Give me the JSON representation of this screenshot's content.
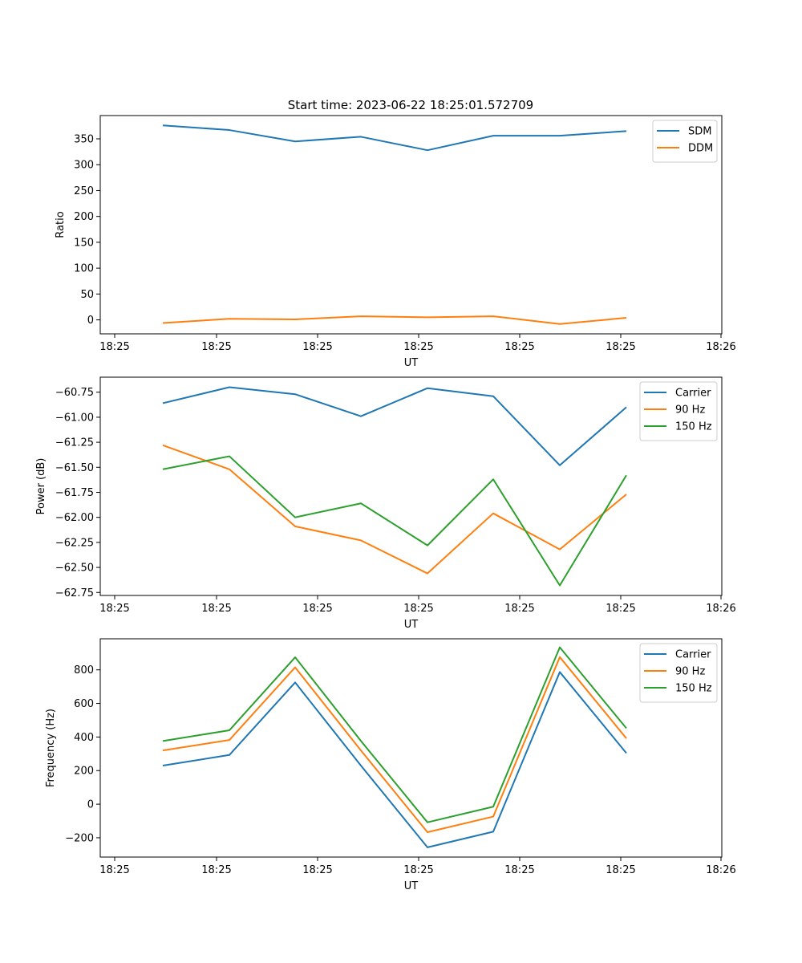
{
  "figure": {
    "title": "Start time: 2023-06-22 18:25:01.572709"
  },
  "chart_data": [
    {
      "type": "line",
      "title": "Start time: 2023-06-22 18:25:01.572709",
      "xlabel": "UT",
      "ylabel": "Ratio",
      "x_tick_labels": [
        "18:25",
        "18:25",
        "18:25",
        "18:25",
        "18:25",
        "18:25",
        "18:26"
      ],
      "y_ticks": [
        0,
        50,
        100,
        150,
        200,
        250,
        300,
        350
      ],
      "ylim": [
        -27,
        395
      ],
      "legend_position": "top-right",
      "grid": false,
      "series": [
        {
          "name": "SDM",
          "color": "#1f77b4",
          "values": [
            376,
            367,
            345,
            354,
            328,
            356,
            356,
            365
          ]
        },
        {
          "name": "DDM",
          "color": "#ff7f0e",
          "values": [
            -6,
            2,
            1,
            7,
            5,
            7,
            -8,
            4
          ]
        }
      ]
    },
    {
      "type": "line",
      "xlabel": "UT",
      "ylabel": "Power (dB)",
      "x_tick_labels": [
        "18:25",
        "18:25",
        "18:25",
        "18:25",
        "18:25",
        "18:25",
        "18:26"
      ],
      "y_ticks": [
        -62.75,
        -62.5,
        -62.25,
        -62.0,
        -61.75,
        -61.5,
        -61.25,
        -61.0,
        -60.75
      ],
      "ylim": [
        -62.78,
        -60.6
      ],
      "legend_position": "top-right",
      "grid": false,
      "series": [
        {
          "name": "Carrier",
          "color": "#1f77b4",
          "values": [
            -60.86,
            -60.7,
            -60.77,
            -60.99,
            -60.71,
            -60.79,
            -61.48,
            -60.9
          ]
        },
        {
          "name": "90 Hz",
          "color": "#ff7f0e",
          "values": [
            -61.28,
            -61.52,
            -62.09,
            -62.23,
            -62.56,
            -61.96,
            -62.32,
            -61.77
          ]
        },
        {
          "name": "150 Hz",
          "color": "#2ca02c",
          "values": [
            -61.52,
            -61.39,
            -62.0,
            -61.86,
            -62.28,
            -61.62,
            -62.68,
            -61.58
          ]
        }
      ]
    },
    {
      "type": "line",
      "xlabel": "UT",
      "ylabel": "Frequency (Hz)",
      "x_tick_labels": [
        "18:25",
        "18:25",
        "18:25",
        "18:25",
        "18:25",
        "18:25",
        "18:26"
      ],
      "y_ticks": [
        -200,
        0,
        200,
        400,
        600,
        800
      ],
      "ylim": [
        -315,
        985
      ],
      "legend_position": "top-right",
      "grid": false,
      "series": [
        {
          "name": "Carrier",
          "color": "#1f77b4",
          "values": [
            230,
            293,
            725,
            230,
            -257,
            -164,
            787,
            304
          ]
        },
        {
          "name": "90 Hz",
          "color": "#ff7f0e",
          "values": [
            320,
            382,
            815,
            320,
            -167,
            -74,
            876,
            392
          ]
        },
        {
          "name": "150 Hz",
          "color": "#2ca02c",
          "values": [
            376,
            440,
            875,
            377,
            -108,
            -15,
            934,
            452
          ]
        }
      ]
    }
  ]
}
